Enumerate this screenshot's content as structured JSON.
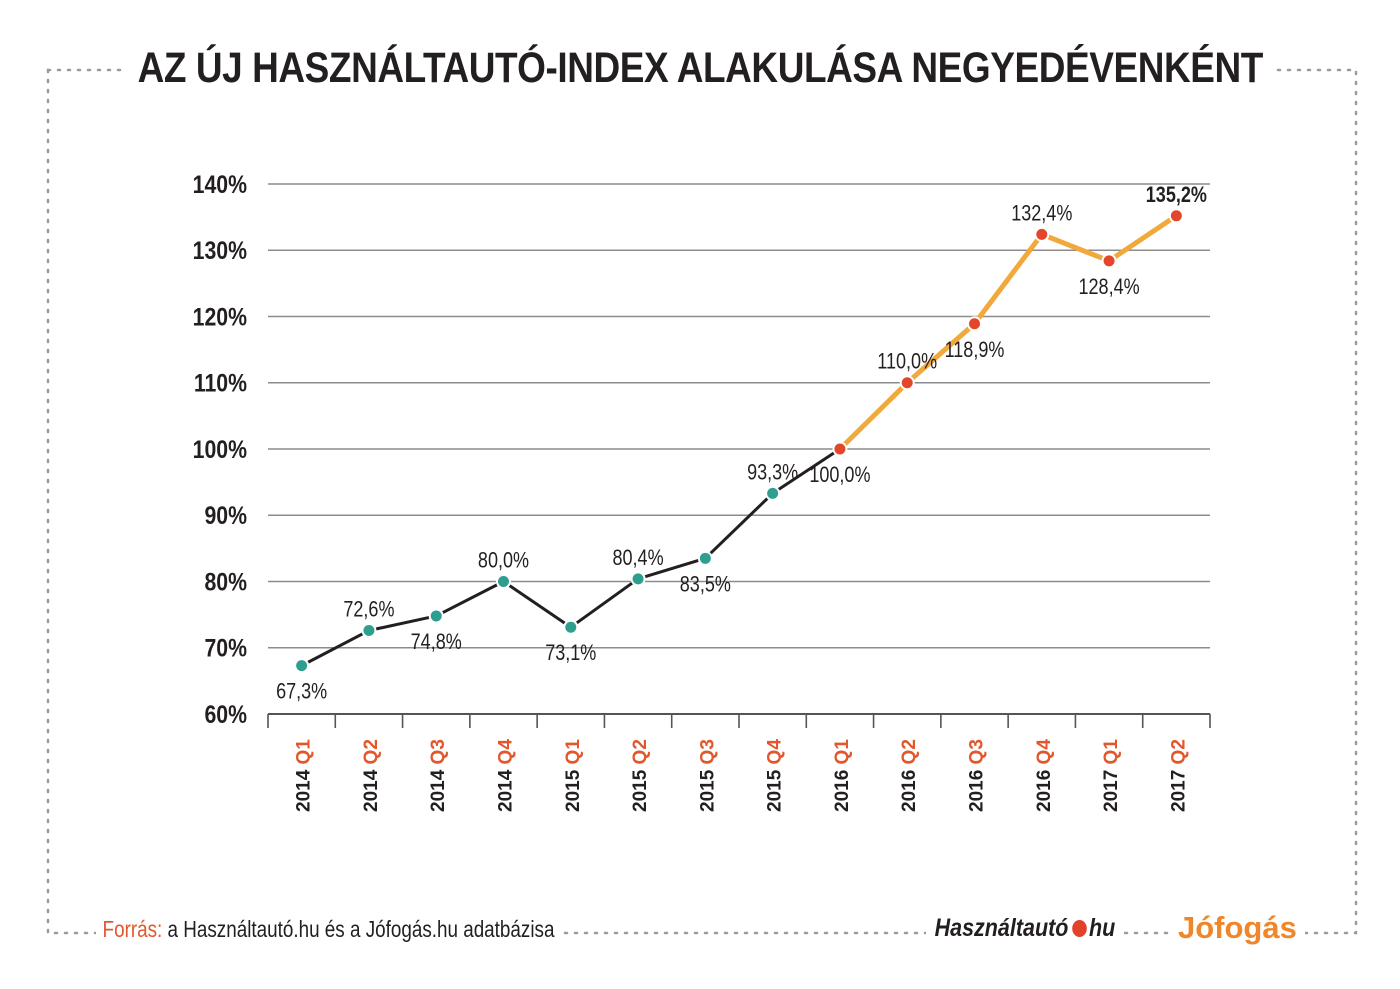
{
  "title": "AZ ÚJ HASZNÁLTAUTÓ-INDEX ALAKULÁSA NEGYEDÉVENKÉNT",
  "footer": {
    "source_label": "Forrás:",
    "source_text": "a Használtautó.hu és a Jófogás.hu adatbázisa",
    "brand_hasznaltauto_left": "Használtautó",
    "brand_hasznaltauto_right": "hu",
    "brand_jofogas": "Jófogás"
  },
  "colors": {
    "line_dark": "#231f20",
    "line_highlight": "#f2a93b",
    "marker_teal": "#2e9e8f",
    "marker_red": "#e2472b",
    "quarter_label": "#e2572b",
    "grid": "#8c8c8c",
    "frame_dots": "#9a9a9a"
  },
  "chart_data": {
    "type": "line",
    "title": "AZ ÚJ HASZNÁLTAUTÓ-INDEX ALAKULÁSA NEGYEDÉVENKÉNT",
    "categories": [
      {
        "year": "2014",
        "quarter": "Q1"
      },
      {
        "year": "2014",
        "quarter": "Q2"
      },
      {
        "year": "2014",
        "quarter": "Q3"
      },
      {
        "year": "2014",
        "quarter": "Q4"
      },
      {
        "year": "2015",
        "quarter": "Q1"
      },
      {
        "year": "2015",
        "quarter": "Q2"
      },
      {
        "year": "2015",
        "quarter": "Q3"
      },
      {
        "year": "2015",
        "quarter": "Q4"
      },
      {
        "year": "2016",
        "quarter": "Q1"
      },
      {
        "year": "2016",
        "quarter": "Q2"
      },
      {
        "year": "2016",
        "quarter": "Q3"
      },
      {
        "year": "2016",
        "quarter": "Q4"
      },
      {
        "year": "2017",
        "quarter": "Q1"
      },
      {
        "year": "2017",
        "quarter": "Q2"
      }
    ],
    "values": [
      67.3,
      72.6,
      74.8,
      80.0,
      73.1,
      80.4,
      83.5,
      93.3,
      100.0,
      110.0,
      118.9,
      132.4,
      128.4,
      135.2
    ],
    "value_labels": [
      "67,3%",
      "72,6%",
      "74,8%",
      "80,0%",
      "73,1%",
      "80,4%",
      "83,5%",
      "93,3%",
      "100,0%",
      "110,0%",
      "118,9%",
      "132,4%",
      "128,4%",
      "135,2%"
    ],
    "label_position": [
      "below",
      "above",
      "below",
      "above",
      "below",
      "above",
      "below",
      "above",
      "below",
      "above",
      "below",
      "above",
      "below",
      "above"
    ],
    "bold_labels": [
      13
    ],
    "highlight_from_index": 8,
    "yticks": [
      "60%",
      "70%",
      "80%",
      "90%",
      "100%",
      "110%",
      "120%",
      "130%",
      "140%"
    ],
    "ylim": [
      60,
      140
    ],
    "ytick_step": 10,
    "grid": true
  }
}
